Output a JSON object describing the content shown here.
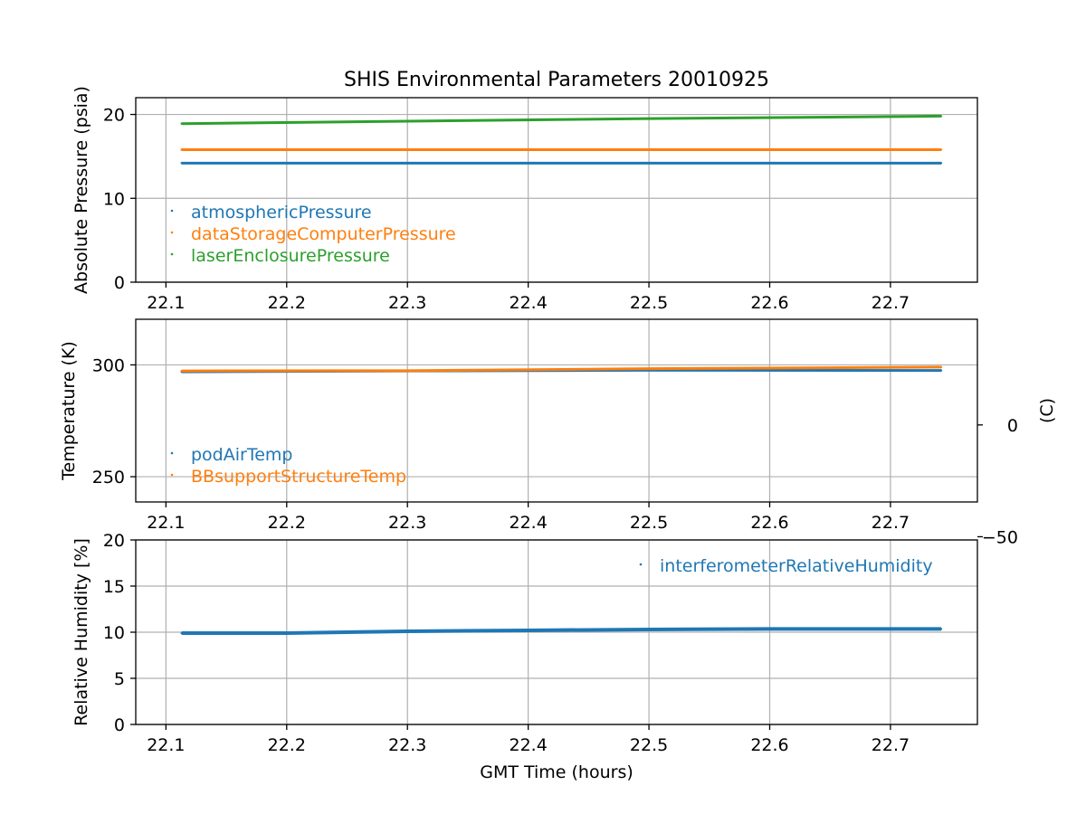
{
  "title": "SHIS Environmental Parameters 20010925",
  "chart_data": [
    {
      "type": "scatter",
      "id": "pressure",
      "ylabel": "Absolute Pressure (psia)",
      "xlabel": "",
      "xlim": [
        22.075,
        22.772
      ],
      "ylim": [
        0,
        22
      ],
      "xticks": [
        "22.1",
        "22.2",
        "22.3",
        "22.4",
        "22.5",
        "22.6",
        "22.7"
      ],
      "yticks": [
        "0",
        "10",
        "20"
      ],
      "grid": true,
      "legend_position": "lower-left",
      "series": [
        {
          "name": "atmosphericPressure",
          "color": "#1f77b4",
          "x": [
            22.113,
            22.742
          ],
          "y": [
            14.2,
            14.2
          ]
        },
        {
          "name": "dataStorageComputerPressure",
          "color": "#ff7f0e",
          "x": [
            22.113,
            22.742
          ],
          "y": [
            15.8,
            15.8
          ]
        },
        {
          "name": "laserEnclosurePressure",
          "color": "#2ca02c",
          "x": [
            22.113,
            22.3,
            22.5,
            22.742
          ],
          "y": [
            18.9,
            19.2,
            19.5,
            19.8
          ]
        }
      ]
    },
    {
      "type": "scatter",
      "id": "temperature",
      "ylabel": "Temperature (K)",
      "ylabel_right": "(C)",
      "xlabel": "",
      "xlim": [
        22.075,
        22.772
      ],
      "ylim": [
        238.7,
        320.4
      ],
      "xticks": [
        "22.1",
        "22.2",
        "22.3",
        "22.4",
        "22.5",
        "22.6",
        "22.7"
      ],
      "yticks": [
        "250",
        "300"
      ],
      "yticks_right": [
        "−50",
        "0"
      ],
      "grid": true,
      "legend_position": "lower-left",
      "series": [
        {
          "name": "podAirTemp",
          "color": "#1f77b4",
          "x": [
            22.113,
            22.3,
            22.5,
            22.742
          ],
          "y": [
            296.9,
            297.3,
            297.6,
            297.5
          ]
        },
        {
          "name": "BBsupportStructureTemp",
          "color": "#ff7f0e",
          "x": [
            22.113,
            22.3,
            22.5,
            22.742
          ],
          "y": [
            297.3,
            297.4,
            298.3,
            299.0
          ]
        }
      ]
    },
    {
      "type": "scatter",
      "id": "humidity",
      "ylabel": "Relative Humidity [%]",
      "xlabel": "GMT Time (hours)",
      "xlim": [
        22.075,
        22.772
      ],
      "ylim": [
        0,
        20
      ],
      "xticks": [
        "22.1",
        "22.2",
        "22.3",
        "22.4",
        "22.5",
        "22.6",
        "22.7"
      ],
      "yticks": [
        "0",
        "5",
        "10",
        "15",
        "20"
      ],
      "grid": true,
      "legend_position": "upper-right",
      "series": [
        {
          "name": "interferometerRelativeHumidity",
          "color": "#1f77b4",
          "x": [
            22.113,
            22.2,
            22.3,
            22.4,
            22.5,
            22.6,
            22.742
          ],
          "y": [
            9.9,
            9.9,
            10.1,
            10.2,
            10.3,
            10.35,
            10.35
          ]
        }
      ]
    }
  ]
}
